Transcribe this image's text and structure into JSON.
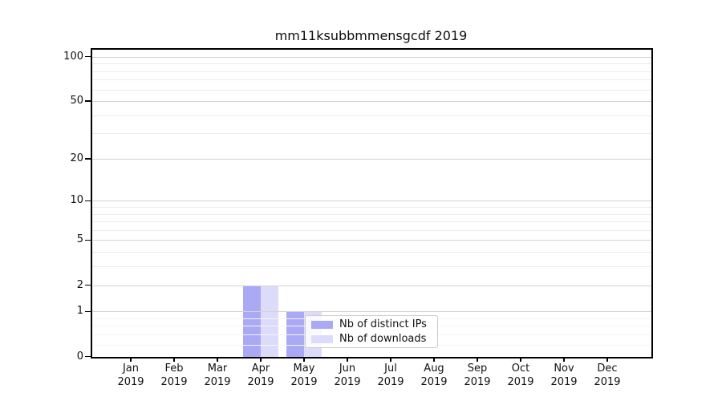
{
  "title": "mm11ksubbmmensgcdf 2019",
  "chart_data": {
    "type": "bar",
    "title": "mm11ksubbmmensgcdf 2019",
    "x_tick_months": [
      "Jan",
      "Feb",
      "Mar",
      "Apr",
      "May",
      "Jun",
      "Jul",
      "Aug",
      "Sep",
      "Oct",
      "Nov",
      "Dec"
    ],
    "x_tick_year": "2019",
    "categories": [
      "Jan 2019",
      "Feb 2019",
      "Mar 2019",
      "Apr 2019",
      "May 2019",
      "Jun 2019",
      "Jul 2019",
      "Aug 2019",
      "Sep 2019",
      "Oct 2019",
      "Nov 2019",
      "Dec 2019"
    ],
    "series": [
      {
        "name": "Nb of distinct IPs",
        "color": "#a9a9f5",
        "values": [
          0,
          0,
          0,
          2,
          1,
          0,
          0,
          0,
          0,
          0,
          0,
          0
        ]
      },
      {
        "name": "Nb of downloads",
        "color": "#dcdcfa",
        "values": [
          0,
          0,
          0,
          2,
          1,
          0,
          0,
          0,
          0,
          0,
          0,
          0
        ]
      }
    ],
    "yscale": "log1p",
    "y_major_ticks": [
      0,
      1,
      2,
      5,
      10,
      20,
      50,
      100
    ],
    "y_minor_ticks": [
      0.2,
      0.4,
      0.6,
      0.8,
      3,
      4,
      6,
      7,
      8,
      9,
      30,
      40,
      60,
      70,
      80,
      90
    ],
    "ylim": [
      0,
      114
    ],
    "grid": true,
    "legend_position": "inside lower right"
  },
  "legend": {
    "items": [
      {
        "label": "Nb of distinct IPs",
        "color": "#a9a9f5"
      },
      {
        "label": "Nb of downloads",
        "color": "#dcdcfa"
      }
    ]
  },
  "colors": {
    "background": "#ffffff",
    "spine": "#000000",
    "grid_major": "#d3d3d3",
    "grid_minor": "#ececec",
    "grid_subminor": "#f5f5f5",
    "text": "#111111",
    "legend_border": "#cccccc"
  }
}
